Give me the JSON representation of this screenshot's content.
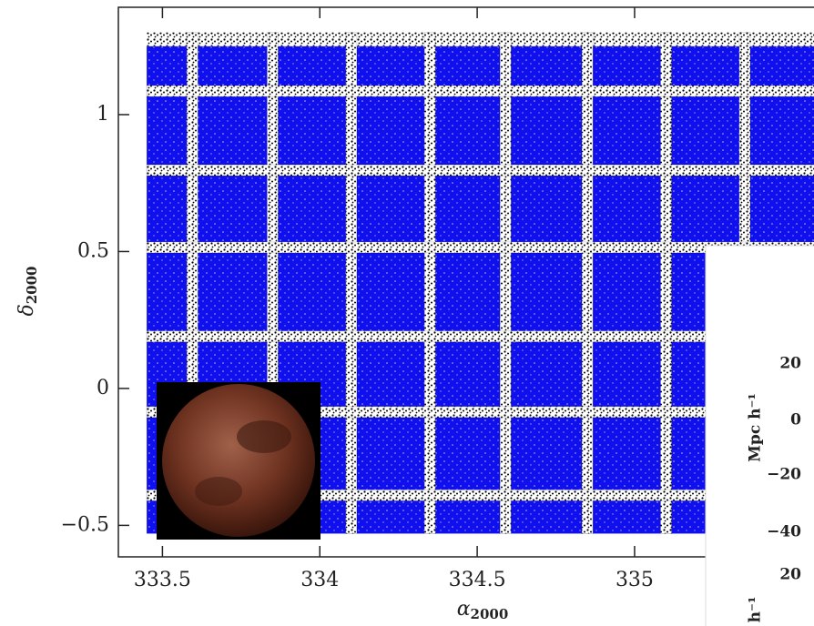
{
  "chart_data": {
    "type": "footprint",
    "xlabel": {
      "symbol": "α",
      "subscript": "2000"
    },
    "ylabel": {
      "symbol": "δ",
      "subscript": "2000"
    },
    "xlim": [
      333.36,
      335.57
    ],
    "ylim": [
      -0.615,
      1.392
    ],
    "xticks": [
      333.5,
      334,
      334.5,
      335
    ],
    "yticks": [
      {
        "value": -0.5,
        "label": "−0.5"
      },
      0,
      0.5,
      1
    ],
    "field": {
      "color": "#1010ee",
      "x": [
        333.45,
        335.6
      ],
      "y": [
        -0.53,
        1.25
      ]
    },
    "top_band": {
      "color": "#000000",
      "y": [
        1.25,
        1.3
      ]
    },
    "gap_color": "#000000",
    "gap_x": [
      333.595,
      333.85,
      334.1,
      334.35,
      334.59,
      334.85,
      335.1,
      335.35
    ],
    "gap_y": [
      1.086,
      0.797,
      0.515,
      0.19,
      -0.086,
      -0.39
    ],
    "gap_width_x": 0.035,
    "gap_width_y": 0.04
  },
  "overlay_panel": {
    "tick_labels": [
      "20",
      "0",
      "−20",
      "−40"
    ],
    "axis_label": "Mpc h⁻¹",
    "lower_tick": "20",
    "lower_label": "h⁻¹"
  }
}
